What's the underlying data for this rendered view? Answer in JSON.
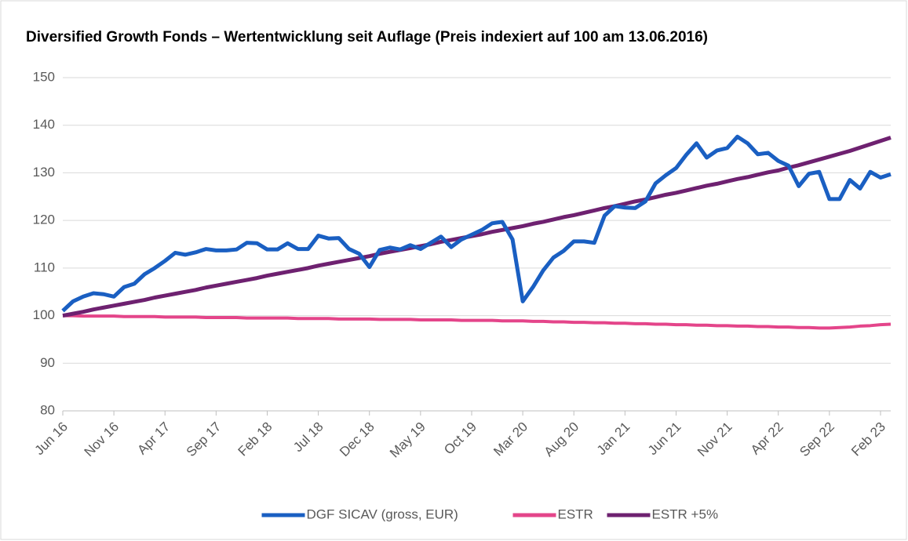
{
  "chart_data": {
    "type": "line",
    "title": "Diversified Growth Fonds – Wertentwicklung seit Auflage (Preis indexiert auf 100 am 13.06.2016)",
    "categories": [
      "Jun 16",
      null,
      null,
      null,
      null,
      "Nov 16",
      null,
      null,
      null,
      null,
      "Apr 17",
      null,
      null,
      null,
      null,
      "Sep 17",
      null,
      null,
      null,
      null,
      "Feb 18",
      null,
      null,
      null,
      null,
      "Jul 18",
      null,
      null,
      null,
      null,
      "Dec 18",
      null,
      null,
      null,
      null,
      "May 19",
      null,
      null,
      null,
      null,
      "Oct 19",
      null,
      null,
      null,
      null,
      "Mar 20",
      null,
      null,
      null,
      null,
      "Aug 20",
      null,
      null,
      null,
      null,
      "Jan 21",
      null,
      null,
      null,
      null,
      "Jun 21",
      null,
      null,
      null,
      null,
      "Nov 21",
      null,
      null,
      null,
      null,
      "Apr 22",
      null,
      null,
      null,
      null,
      "Sep 22",
      null,
      null,
      null,
      null,
      "Feb 23",
      null
    ],
    "series": [
      {
        "name": "DGF SICAV (gross, EUR)",
        "color": "#1a5fc2",
        "values": [
          101,
          103,
          104,
          104.7,
          104.5,
          104,
          106,
          106.7,
          108.7,
          110,
          111.5,
          113.2,
          112.8,
          113.3,
          114,
          113.7,
          113.7,
          113.9,
          115.3,
          115.2,
          113.9,
          113.9,
          115.2,
          114,
          114,
          116.8,
          116.2,
          116.3,
          114,
          113,
          110.2,
          113.8,
          114.3,
          113.9,
          114.8,
          114,
          115.3,
          116.6,
          114.4,
          116,
          117,
          118,
          119.4,
          119.7,
          116,
          103,
          106,
          109.5,
          112.2,
          113.6,
          115.6,
          115.6,
          115.3,
          121,
          123,
          122.7,
          122.6,
          124,
          127.8,
          129.5,
          131,
          133.8,
          136.2,
          133.2,
          134.7,
          135.2,
          137.6,
          136.2,
          133.9,
          134.2,
          132.5,
          131.5,
          127.2,
          129.8,
          130.2,
          124.5,
          124.5,
          128.5,
          126.7,
          130.2,
          129,
          129.7
        ]
      },
      {
        "name": "ESTR",
        "color": "#e4458a",
        "values": [
          100.0,
          100.0,
          99.9,
          99.9,
          99.9,
          99.9,
          99.8,
          99.8,
          99.8,
          99.8,
          99.7,
          99.7,
          99.7,
          99.7,
          99.6,
          99.6,
          99.6,
          99.6,
          99.5,
          99.5,
          99.5,
          99.5,
          99.5,
          99.4,
          99.4,
          99.4,
          99.4,
          99.3,
          99.3,
          99.3,
          99.3,
          99.2,
          99.2,
          99.2,
          99.2,
          99.1,
          99.1,
          99.1,
          99.1,
          99.0,
          99.0,
          99.0,
          99.0,
          98.9,
          98.9,
          98.9,
          98.8,
          98.8,
          98.7,
          98.7,
          98.6,
          98.6,
          98.5,
          98.5,
          98.4,
          98.4,
          98.3,
          98.3,
          98.2,
          98.2,
          98.1,
          98.1,
          98.0,
          98.0,
          97.9,
          97.9,
          97.8,
          97.8,
          97.7,
          97.7,
          97.6,
          97.6,
          97.5,
          97.5,
          97.4,
          97.4,
          97.5,
          97.6,
          97.8,
          97.9,
          98.1,
          98.2
        ]
      },
      {
        "name": "ESTR +5%",
        "color": "#6e2170",
        "values": [
          100.0,
          100.4,
          100.8,
          101.3,
          101.7,
          102.1,
          102.5,
          102.9,
          103.3,
          103.8,
          104.2,
          104.6,
          105.0,
          105.4,
          105.9,
          106.3,
          106.7,
          107.1,
          107.5,
          107.9,
          108.4,
          108.8,
          109.2,
          109.6,
          110.0,
          110.5,
          110.9,
          111.3,
          111.7,
          112.1,
          112.5,
          113.0,
          113.4,
          113.8,
          114.2,
          114.6,
          115.0,
          115.5,
          115.9,
          116.3,
          116.7,
          117.1,
          117.6,
          118.0,
          118.4,
          118.8,
          119.3,
          119.7,
          120.2,
          120.7,
          121.1,
          121.6,
          122.1,
          122.6,
          123.0,
          123.5,
          124.0,
          124.4,
          124.9,
          125.4,
          125.8,
          126.3,
          126.8,
          127.3,
          127.7,
          128.2,
          128.7,
          129.1,
          129.6,
          130.1,
          130.5,
          131.1,
          131.6,
          132.2,
          132.8,
          133.4,
          134.0,
          134.6,
          135.3,
          136.0,
          136.7,
          137.4
        ]
      }
    ],
    "ylim": [
      80,
      150
    ],
    "yticks": [
      80,
      90,
      100,
      110,
      120,
      130,
      140,
      150
    ],
    "grid": true,
    "legend": "bottom"
  }
}
